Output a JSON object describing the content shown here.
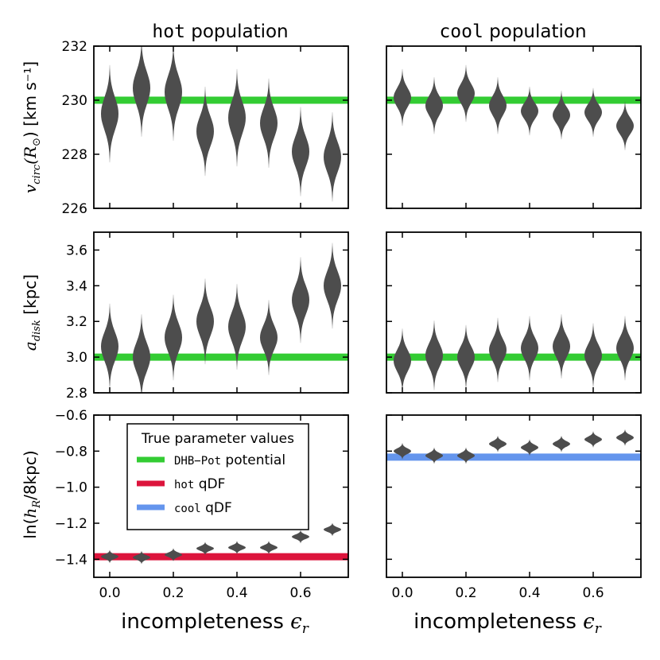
{
  "figure": {
    "col_titles": [
      {
        "mono": "hot",
        "rest": " population"
      },
      {
        "mono": "cool",
        "rest": " population"
      }
    ],
    "xlabel": "incompleteness",
    "xlabel_symbol": "ϵ",
    "xlabel_sub": "r",
    "ylabels": [
      {
        "pre": "",
        "sym": "v",
        "sub": "circ",
        "post": "(R",
        "post_sub": "⊙",
        "post2": ") [km s⁻¹]"
      },
      {
        "pre": "",
        "sym": "a",
        "sub": "disk",
        "post": " [kpc]",
        "post_sub": "",
        "post2": ""
      },
      {
        "pre": "ln(",
        "sym": "h",
        "sub": "R",
        "post": "/8kpc)",
        "post_sub": "",
        "post2": ""
      }
    ],
    "xticks": [
      0.0,
      0.2,
      0.4,
      0.6
    ],
    "xtick_labels": [
      "0.0",
      "0.2",
      "0.4",
      "0.6"
    ],
    "xlim": [
      -0.05,
      0.75
    ]
  },
  "legend": {
    "title": "True parameter values",
    "entries": [
      {
        "mono": "DHB−Pot",
        "rest": " potential",
        "color": "#33cc33"
      },
      {
        "mono": "hot",
        "rest": " qDF",
        "color": "#dc143c"
      },
      {
        "mono": "cool",
        "rest": " qDF",
        "color": "#6495ed"
      }
    ]
  },
  "colors": {
    "violin": "#4d4d4d",
    "green": "#33cc33",
    "red": "#dc143c",
    "blue": "#6495ed"
  },
  "chart_data": [
    {
      "type": "violin",
      "panel": "hot-vcirc",
      "x": [
        0.0,
        0.1,
        0.2,
        0.3,
        0.4,
        0.5,
        0.6,
        0.7
      ],
      "median": [
        229.5,
        230.45,
        230.3,
        228.85,
        229.35,
        229.15,
        228.1,
        227.9
      ],
      "half_width_sigma": [
        0.6,
        0.6,
        0.6,
        0.55,
        0.6,
        0.55,
        0.55,
        0.55
      ],
      "true_value": 230.0,
      "true_color": "green",
      "ylim": [
        226,
        232
      ],
      "yticks": [
        226,
        228,
        230,
        232
      ],
      "ytick_labels": [
        "226",
        "228",
        "230",
        "232"
      ]
    },
    {
      "type": "violin",
      "panel": "cool-vcirc",
      "x": [
        0.0,
        0.1,
        0.2,
        0.3,
        0.4,
        0.5,
        0.6,
        0.7
      ],
      "median": [
        230.1,
        229.8,
        230.25,
        229.8,
        229.6,
        229.45,
        229.55,
        229.05
      ],
      "half_width_sigma": [
        0.35,
        0.35,
        0.35,
        0.35,
        0.3,
        0.3,
        0.3,
        0.3
      ],
      "true_value": 230.0,
      "true_color": "green",
      "ylim": [
        226,
        232
      ],
      "yticks": [
        226,
        228,
        230,
        232
      ],
      "ytick_labels": []
    },
    {
      "type": "violin",
      "panel": "hot-adisk",
      "x": [
        0.0,
        0.1,
        0.2,
        0.3,
        0.4,
        0.5,
        0.6,
        0.7
      ],
      "median": [
        3.06,
        3.0,
        3.11,
        3.2,
        3.17,
        3.11,
        3.32,
        3.4
      ],
      "half_width_sigma": [
        0.08,
        0.08,
        0.08,
        0.08,
        0.08,
        0.07,
        0.08,
        0.08
      ],
      "true_value": 3.0,
      "true_color": "green",
      "ylim": [
        2.8,
        3.7
      ],
      "yticks": [
        2.8,
        3.0,
        3.2,
        3.4,
        3.6
      ],
      "ytick_labels": [
        "2.8",
        "3.0",
        "3.2",
        "3.4",
        "3.6"
      ]
    },
    {
      "type": "violin",
      "panel": "cool-adisk",
      "x": [
        0.0,
        0.1,
        0.2,
        0.3,
        0.4,
        0.5,
        0.6,
        0.7
      ],
      "median": [
        2.98,
        3.01,
        3.0,
        3.04,
        3.05,
        3.06,
        3.01,
        3.05
      ],
      "half_width_sigma": [
        0.06,
        0.065,
        0.06,
        0.06,
        0.06,
        0.06,
        0.06,
        0.06
      ],
      "true_value": 3.0,
      "true_color": "green",
      "ylim": [
        2.8,
        3.7
      ],
      "yticks": [
        2.8,
        3.0,
        3.2,
        3.4,
        3.6
      ],
      "ytick_labels": []
    },
    {
      "type": "violin",
      "panel": "hot-lnhR",
      "x": [
        0.0,
        0.1,
        0.2,
        0.3,
        0.4,
        0.5,
        0.6,
        0.7
      ],
      "median": [
        -1.385,
        -1.39,
        -1.375,
        -1.34,
        -1.335,
        -1.335,
        -1.275,
        -1.235
      ],
      "half_width_sigma": [
        0.012,
        0.012,
        0.012,
        0.012,
        0.012,
        0.012,
        0.012,
        0.012
      ],
      "true_value": -1.386,
      "true_color": "red",
      "ylim": [
        -1.5,
        -0.6
      ],
      "yticks": [
        -1.4,
        -1.2,
        -1.0,
        -0.8,
        -0.6
      ],
      "ytick_labels": [
        "−1.4",
        "−1.2",
        "−1.0",
        "−0.8",
        "−0.6"
      ]
    },
    {
      "type": "violin",
      "panel": "cool-lnhR",
      "x": [
        0.0,
        0.1,
        0.2,
        0.3,
        0.4,
        0.5,
        0.6,
        0.7
      ],
      "median": [
        -0.8,
        -0.825,
        -0.825,
        -0.76,
        -0.78,
        -0.76,
        -0.735,
        -0.725
      ],
      "half_width_sigma": [
        0.015,
        0.015,
        0.015,
        0.015,
        0.015,
        0.015,
        0.015,
        0.015
      ],
      "true_value": -0.833,
      "true_color": "blue",
      "ylim": [
        -1.5,
        -0.6
      ],
      "yticks": [
        -1.4,
        -1.2,
        -1.0,
        -0.8,
        -0.6
      ],
      "ytick_labels": []
    }
  ]
}
